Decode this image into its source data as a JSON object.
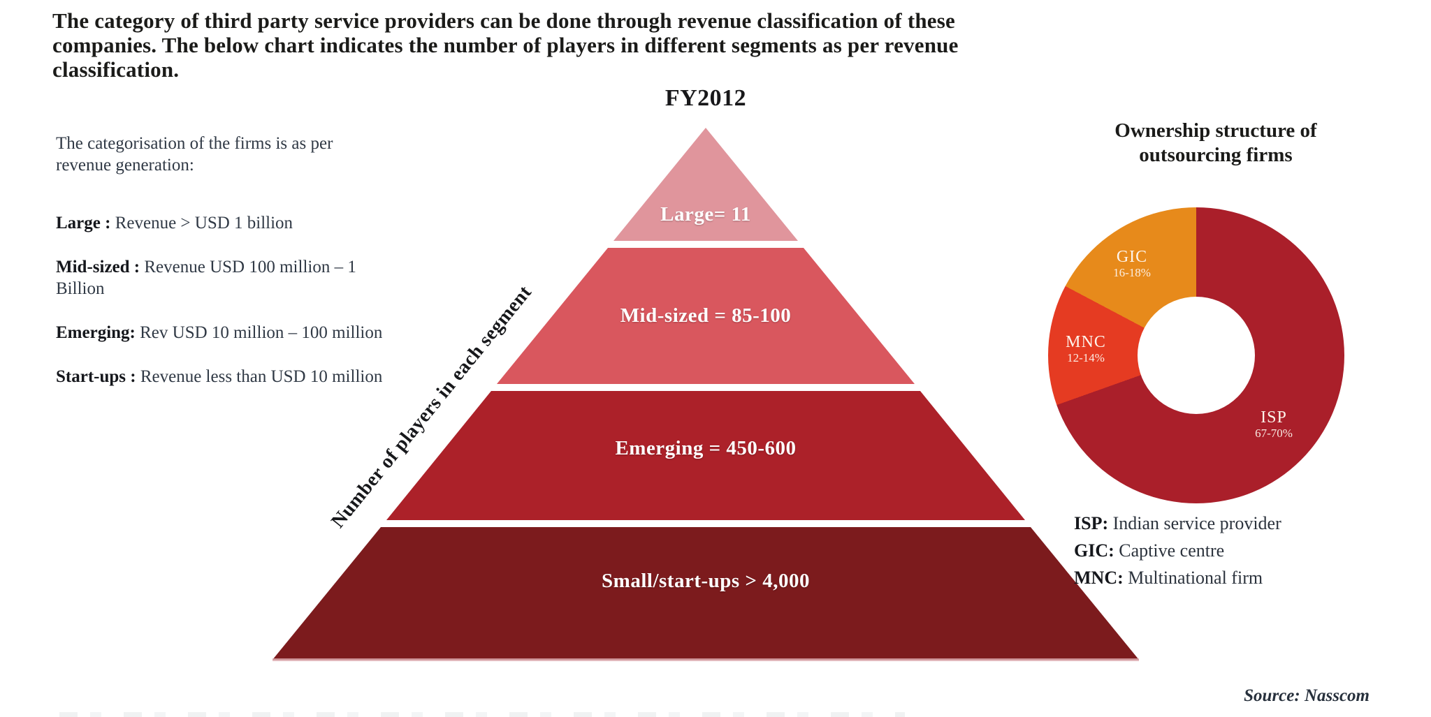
{
  "page": {
    "heading": "The category of third party service providers can be done through revenue classification of these companies. The below chart indicates the number of players in different segments as per revenue classification.",
    "source_note": "Source: Nasscom"
  },
  "definitions": {
    "intro": "The categorisation of the firms is as per revenue generation:",
    "items": [
      {
        "term": "Large :",
        "desc": " Revenue > USD 1 billion"
      },
      {
        "term": "Mid-sized :",
        "desc": " Revenue USD 100 million – 1 Billion"
      },
      {
        "term": "Emerging:",
        "desc": " Rev USD 10 million – 100 million"
      },
      {
        "term": "Start-ups :",
        "desc": " Revenue less than USD 10 million"
      }
    ]
  },
  "pyramid": {
    "title": "FY2012",
    "axis_label": "Number of players in each segment",
    "layers": [
      {
        "label": "Large= 11",
        "color": "#e0959c"
      },
      {
        "label": "Mid-sized = 85-100",
        "color": "#d9575e"
      },
      {
        "label": "Emerging = 450-600",
        "color": "#ac2129"
      },
      {
        "label": "Small/start-ups > 4,000",
        "color": "#7c1b1d"
      }
    ]
  },
  "donut": {
    "title": "Ownership structure of outsourcing firms",
    "segments": [
      {
        "name": "ISP",
        "range": "67-70%",
        "value": 68.5,
        "color": "#aa1f2a"
      },
      {
        "name": "MNC",
        "range": "12-14%",
        "value": 13,
        "color": "#e53b22"
      },
      {
        "name": "GIC",
        "range": "16-18%",
        "value": 17,
        "color": "#e78a1b"
      }
    ],
    "legend": [
      {
        "abbr": "ISP:",
        "desc": " Indian service provider"
      },
      {
        "abbr": "GIC:",
        "desc": " Captive centre"
      },
      {
        "abbr": "MNC:",
        "desc": " Multinational firm"
      }
    ]
  },
  "chart_data": [
    {
      "type": "pyramid",
      "title": "FY2012",
      "axis_label": "Number of players in each segment",
      "categories": [
        "Large",
        "Mid-sized",
        "Emerging",
        "Small/start-ups"
      ],
      "values": [
        "11",
        "85-100",
        "450-600",
        ">4,000"
      ],
      "labels": [
        "Large= 11",
        "Mid-sized = 85-100",
        "Emerging = 450-600",
        "Small/start-ups > 4,000"
      ],
      "colors": [
        "#e0959c",
        "#d9575e",
        "#ac2129",
        "#7c1b1d"
      ],
      "order": "smallest value at top, largest at base"
    },
    {
      "type": "pie",
      "subtype": "donut",
      "title": "Ownership structure of outsourcing firms",
      "categories": [
        "ISP",
        "MNC",
        "GIC"
      ],
      "values": [
        68.5,
        13,
        17
      ],
      "value_labels": [
        "67-70%",
        "12-14%",
        "16-18%"
      ],
      "colors": [
        "#aa1f2a",
        "#e53b22",
        "#e78a1b"
      ],
      "start_angle_deg": 0,
      "direction": "clockwise",
      "legend": [
        "ISP: Indian service provider",
        "GIC: Captive centre",
        "MNC: Multinational firm"
      ],
      "source": "Source: Nasscom"
    }
  ]
}
